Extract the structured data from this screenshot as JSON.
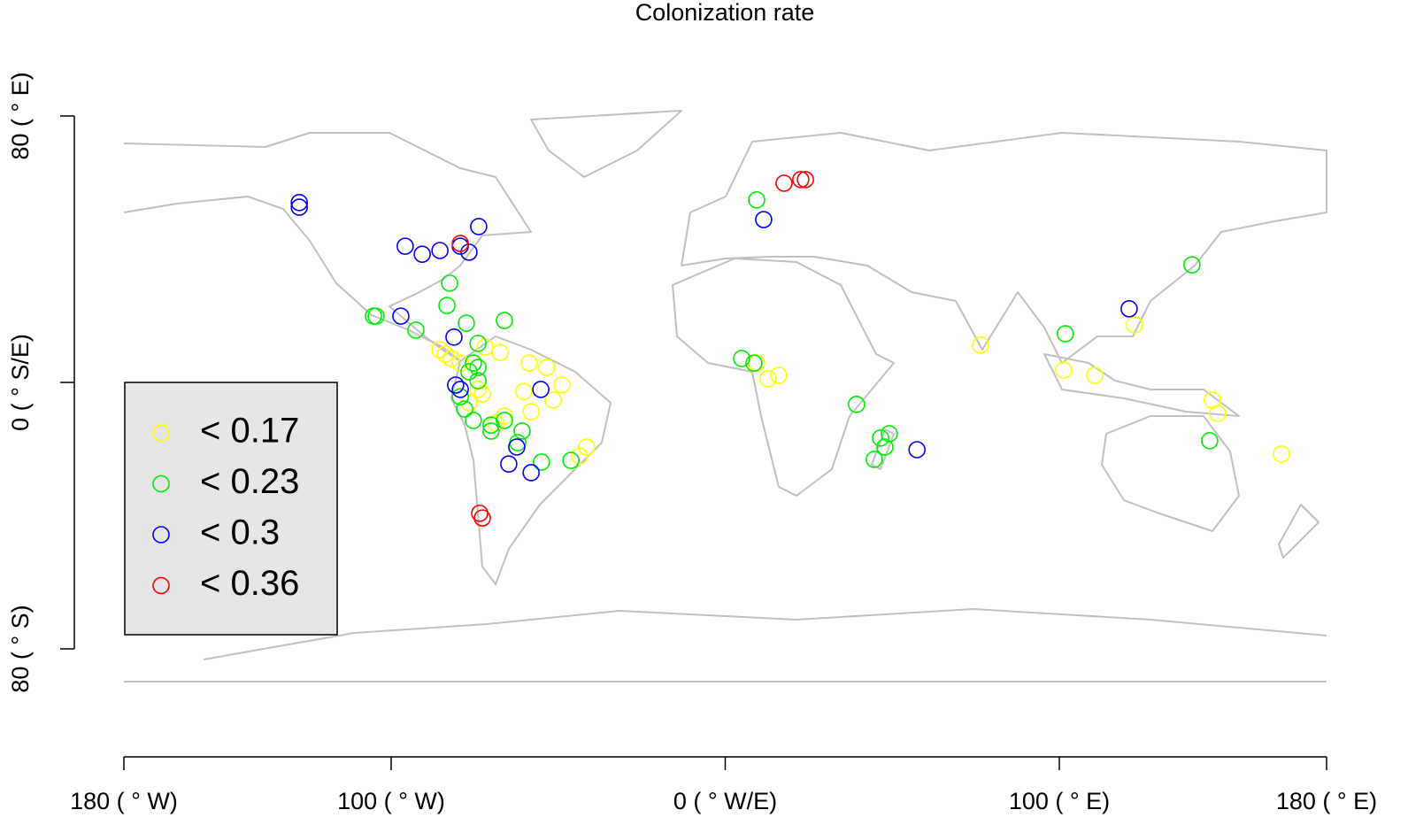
{
  "chart_data": {
    "type": "scatter",
    "title": "Colonization rate",
    "xlim": [
      -180,
      180
    ],
    "ylim": [
      -80,
      80
    ],
    "xticks": [
      {
        "value": -180,
        "label": "180 ( ° W)"
      },
      {
        "value": -100,
        "label": "100 ( ° W)"
      },
      {
        "value": 0,
        "label": "0 ( ° W/E)"
      },
      {
        "value": 100,
        "label": "100 ( ° E)"
      },
      {
        "value": 180,
        "label": "180 ( ° E)"
      }
    ],
    "yticks": [
      {
        "value": -80,
        "label": "80 ( ° S)"
      },
      {
        "value": 0,
        "label": "0 ( ° S/E)"
      },
      {
        "value": 80,
        "label": "80 ( ° E)"
      }
    ],
    "series": [
      {
        "name": "< 0.17",
        "color": "#ffff00",
        "x": [
          -85.4,
          -83.8,
          -82.0,
          -79.3,
          -74.0,
          -72.7,
          -76.7,
          -66.1,
          -58.7,
          -53.4,
          -48.9,
          -51.5,
          -60.3,
          -43.6,
          -41.5,
          9.4,
          12.8,
          16.0,
          76.4,
          101.3,
          110.6,
          122.5,
          145.8,
          147.4,
          166.5,
          -68.7,
          -67.4,
          -71.9,
          -58.1
        ],
        "y": [
          9.8,
          8.5,
          7.2,
          5.8,
          -2.1,
          -3.5,
          -6.1,
          -10.1,
          5.8,
          4.5,
          -0.8,
          -5.3,
          -2.7,
          -22.1,
          -19.4,
          5.8,
          1.1,
          2.1,
          11.2,
          3.7,
          2.1,
          17.3,
          -5.3,
          -9.3,
          -21.5,
          -12.2,
          9.0,
          10.6,
          -8.8
        ]
      },
      {
        "name": "< 0.23",
        "color": "#00ee00",
        "x": [
          -104.5,
          -105.3,
          -92.6,
          -82.5,
          -83.3,
          -77.5,
          -66.1,
          -74.0,
          -75.4,
          -76.7,
          -74.0,
          -79.3,
          -78.0,
          -75.4,
          -70.1,
          -66.1,
          -60.8,
          -62.1,
          -55.0,
          -46.2,
          4.9,
          8.6,
          9.4,
          39.3,
          46.5,
          49.1,
          47.8,
          44.6,
          101.8,
          139.7,
          145.0,
          -74.0,
          -70.1
        ],
        "y": [
          19.9,
          19.9,
          15.7,
          29.8,
          23.1,
          17.8,
          18.6,
          11.7,
          5.8,
          3.2,
          0.5,
          -4.3,
          -8.0,
          -11.4,
          -12.8,
          -11.4,
          -14.6,
          -18.1,
          -23.9,
          -23.4,
          7.2,
          5.8,
          54.8,
          -6.6,
          -16.7,
          -15.4,
          -19.4,
          -23.1,
          14.6,
          35.3,
          -17.5,
          4.5,
          -14.6
        ]
      },
      {
        "name": "< 0.3",
        "color": "#0000ff",
        "x": [
          -127.5,
          -127.5,
          -95.8,
          -90.7,
          -85.4,
          -79.3,
          -76.7,
          -73.8,
          -97.1,
          -81.2,
          -80.7,
          -79.3,
          -55.2,
          -64.8,
          -62.4,
          -58.1,
          11.5,
          57.4,
          120.9
        ],
        "y": [
          54.0,
          52.6,
          40.9,
          38.5,
          39.6,
          40.9,
          39.1,
          46.8,
          19.9,
          13.6,
          -0.8,
          -2.1,
          -2.1,
          -24.5,
          -19.4,
          -27.1,
          48.9,
          -20.2,
          22.1
        ]
      },
      {
        "name": "< 0.36",
        "color": "#ff0000",
        "x": [
          17.6,
          22.6,
          24.0,
          -79.3,
          -73.5,
          -72.7
        ],
        "y": [
          59.8,
          60.9,
          60.9,
          41.7,
          -39.3,
          -40.7
        ]
      }
    ]
  }
}
